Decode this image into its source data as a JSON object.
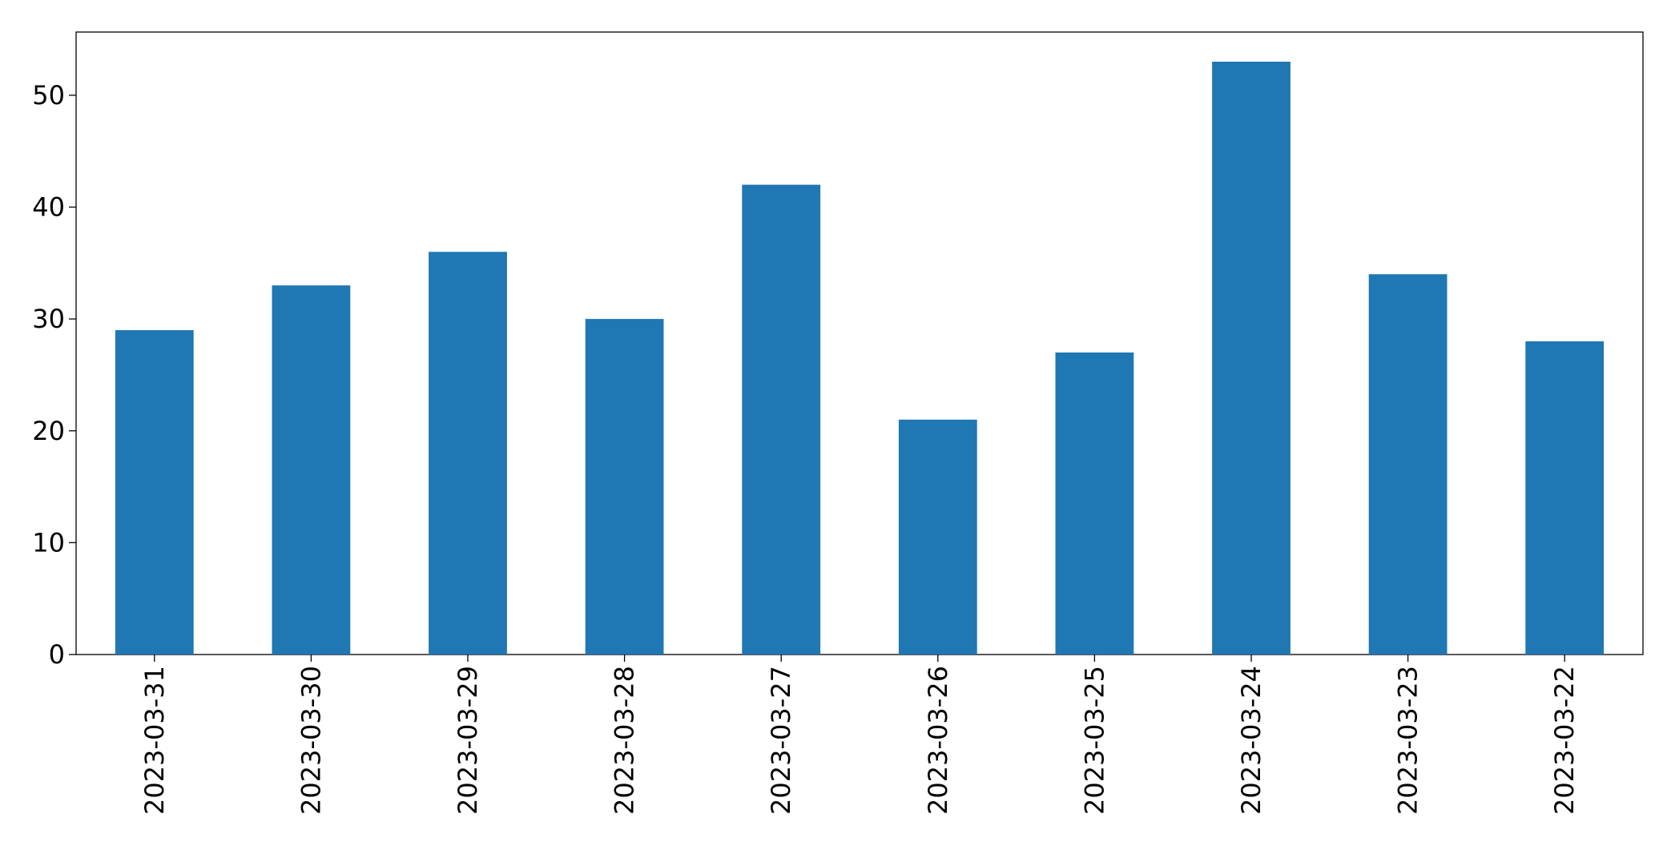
{
  "chart_data": {
    "type": "bar",
    "categories": [
      "2023-03-31",
      "2023-03-30",
      "2023-03-29",
      "2023-03-28",
      "2023-03-27",
      "2023-03-26",
      "2023-03-25",
      "2023-03-24",
      "2023-03-23",
      "2023-03-22"
    ],
    "values": [
      29,
      33,
      36,
      30,
      42,
      21,
      27,
      53,
      34,
      28
    ],
    "color": "#1f77b4",
    "ylim": [
      0,
      55.65
    ],
    "yticks": [
      0,
      10,
      20,
      30,
      40,
      50
    ],
    "grid": false
  }
}
